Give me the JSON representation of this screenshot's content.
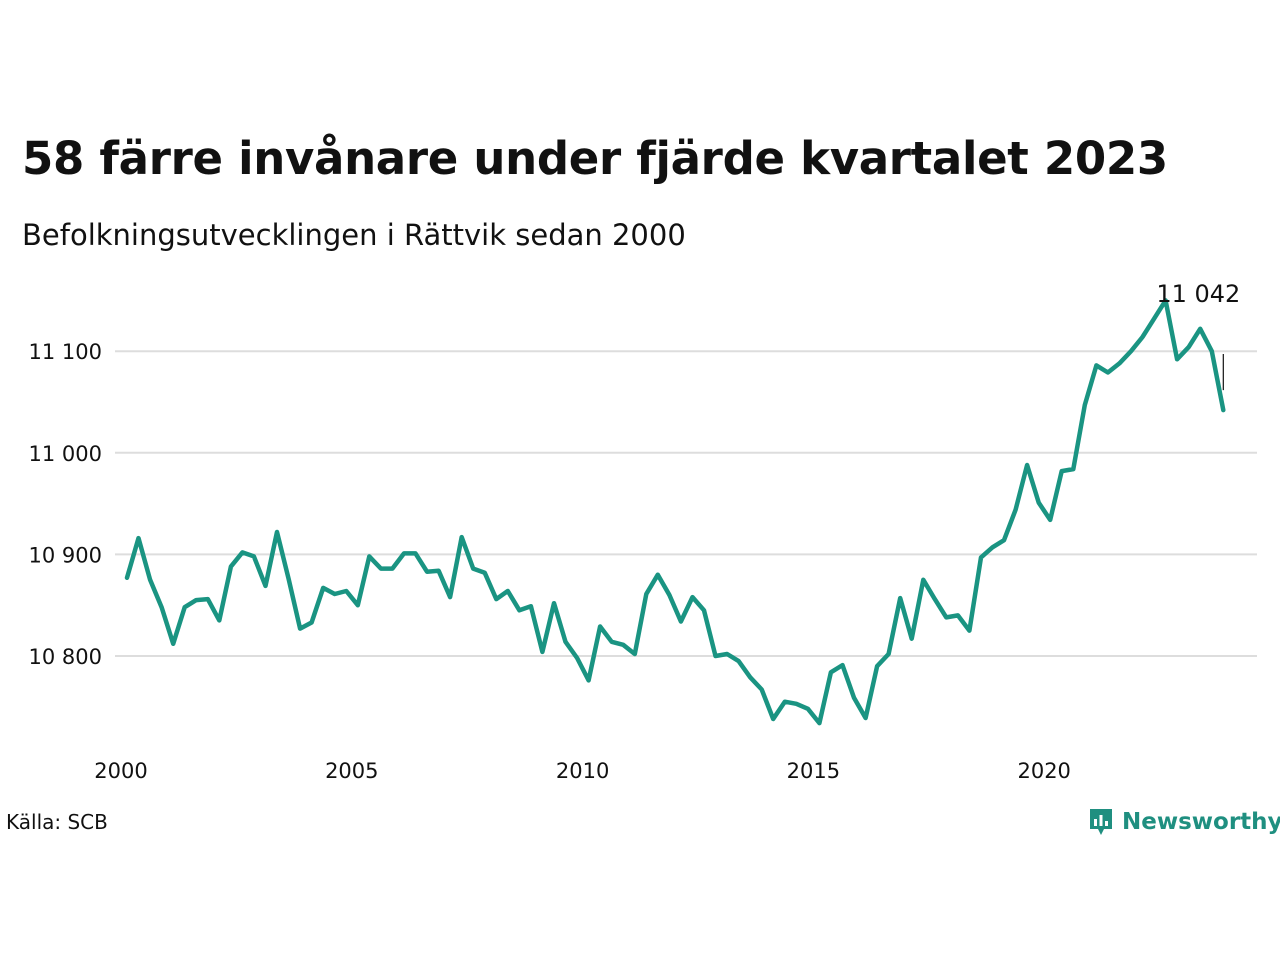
{
  "title": "58 färre invånare under fjärde kvartalet 2023",
  "subtitle": "Befolkningsutvecklingen i Rättvik sedan 2000",
  "source": "Källa: SCB",
  "brand": "Newsworthy",
  "colors": {
    "line": "#1a9482",
    "grid": "#dddddd",
    "brand": "#1f8f80"
  },
  "chart_data": {
    "type": "line",
    "x_start": 2000,
    "x_step": 0.25,
    "xlim": [
      2000,
      2024.75
    ],
    "x_ticks": [
      2000,
      2005,
      2010,
      2015,
      2020
    ],
    "x_tick_labels": [
      "2000",
      "2005",
      "2010",
      "2015",
      "2020"
    ],
    "ylim": [
      10720,
      11160
    ],
    "y_ticks": [
      10800,
      10900,
      11000,
      11100
    ],
    "y_tick_labels": [
      "10 800",
      "10 900",
      "11 000",
      "11 100"
    ],
    "grid": true,
    "series": [
      {
        "values": [
          10877,
          10916,
          10875,
          10848,
          10812,
          10848,
          10855,
          10856,
          10835,
          10888,
          10902,
          10898,
          10869,
          10922,
          10876,
          10827,
          10833,
          10867,
          10861,
          10864,
          10850,
          10898,
          10886,
          10886,
          10901,
          10901,
          10883,
          10884,
          10858,
          10917,
          10886,
          10882,
          10856,
          10864,
          10845,
          10849,
          10804,
          10852,
          10814,
          10798,
          10776,
          10829,
          10814,
          10811,
          10802,
          10861,
          10880,
          10860,
          10834,
          10858,
          10845,
          10800,
          10802,
          10795,
          10779,
          10767,
          10738,
          10755,
          10753,
          10748,
          10734,
          10784,
          10791,
          10759,
          10739,
          10790,
          10802,
          10857,
          10817,
          10875,
          10856,
          10838,
          10840,
          10825,
          10897,
          10907,
          10914,
          10944,
          10988,
          10951,
          10934,
          10982,
          10984,
          11047,
          11086,
          11079,
          11088,
          11100,
          11114,
          11132,
          11150,
          11092,
          11104,
          11122,
          11100,
          11042
        ]
      }
    ],
    "last_value_label": "11 042"
  }
}
